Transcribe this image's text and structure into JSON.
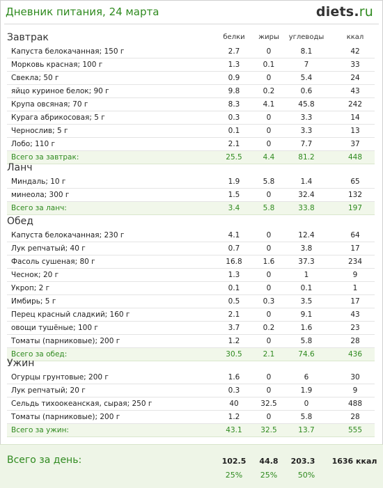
{
  "header": {
    "title": "Дневник питания, 24 марта",
    "logo_main": "diets",
    "logo_dot": ".",
    "logo_tld": "ru"
  },
  "columns": {
    "protein": "белки",
    "fat": "жиры",
    "carbs": "углеводы",
    "kcal": "ккал"
  },
  "sections": [
    {
      "name": "Завтрак",
      "rows": [
        [
          "Капуста белокачанная; 150 г",
          "2.7",
          "0",
          "8.1",
          "42"
        ],
        [
          "Морковь красная; 100 г",
          "1.3",
          "0.1",
          "7",
          "33"
        ],
        [
          "Свекла; 50 г",
          "0.9",
          "0",
          "5.4",
          "24"
        ],
        [
          "яйцо куриное белок; 90 г",
          "9.8",
          "0.2",
          "0.6",
          "43"
        ],
        [
          "Крупа овсяная; 70 г",
          "8.3",
          "4.1",
          "45.8",
          "242"
        ],
        [
          "Курага абрикосовая; 5 г",
          "0.3",
          "0",
          "3.3",
          "14"
        ],
        [
          "Чернослив; 5 г",
          "0.1",
          "0",
          "3.3",
          "13"
        ],
        [
          "Лобо; 110 г",
          "2.1",
          "0",
          "7.7",
          "37"
        ]
      ],
      "total": [
        "Всего за завтрак:",
        "25.5",
        "4.4",
        "81.2",
        "448"
      ]
    },
    {
      "name": "Ланч",
      "rows": [
        [
          "Миндаль; 10 г",
          "1.9",
          "5.8",
          "1.4",
          "65"
        ],
        [
          "минеола; 300 г",
          "1.5",
          "0",
          "32.4",
          "132"
        ]
      ],
      "total": [
        "Всего за ланч:",
        "3.4",
        "5.8",
        "33.8",
        "197"
      ]
    },
    {
      "name": "Обед",
      "rows": [
        [
          "Капуста белокачанная; 230 г",
          "4.1",
          "0",
          "12.4",
          "64"
        ],
        [
          "Лук репчатый; 40 г",
          "0.7",
          "0",
          "3.8",
          "17"
        ],
        [
          "Фасоль сушеная; 80 г",
          "16.8",
          "1.6",
          "37.3",
          "234"
        ],
        [
          "Чеснок; 20 г",
          "1.3",
          "0",
          "1",
          "9"
        ],
        [
          "Укроп; 2 г",
          "0.1",
          "0",
          "0.1",
          "1"
        ],
        [
          "Имбирь; 5 г",
          "0.5",
          "0.3",
          "3.5",
          "17"
        ],
        [
          "Перец красный сладкий; 160 г",
          "2.1",
          "0",
          "9.1",
          "43"
        ],
        [
          "овощи тушёные; 100 г",
          "3.7",
          "0.2",
          "1.6",
          "23"
        ],
        [
          "Томаты (парниковые); 200 г",
          "1.2",
          "0",
          "5.8",
          "28"
        ]
      ],
      "total": [
        "Всего за обед:",
        "30.5",
        "2.1",
        "74.6",
        "436"
      ]
    },
    {
      "name": "Ужин",
      "rows": [
        [
          "Огурцы грунтовые; 200 г",
          "1.6",
          "0",
          "6",
          "30"
        ],
        [
          "Лук репчатый; 20 г",
          "0.3",
          "0",
          "1.9",
          "9"
        ],
        [
          "Сельдь тихоокеанская, сырая; 250 г",
          "40",
          "32.5",
          "0",
          "488"
        ],
        [
          "Томаты (парниковые); 200 г",
          "1.2",
          "0",
          "5.8",
          "28"
        ]
      ],
      "total": [
        "Всего за ужин:",
        "43.1",
        "32.5",
        "13.7",
        "555"
      ]
    }
  ],
  "day_total": {
    "label": "Всего за день:",
    "protein": "102.5",
    "fat": "44.8",
    "carbs": "203.3",
    "kcal": "1636 ккал",
    "protein_pct": "25%",
    "fat_pct": "25%",
    "carbs_pct": "50%"
  }
}
